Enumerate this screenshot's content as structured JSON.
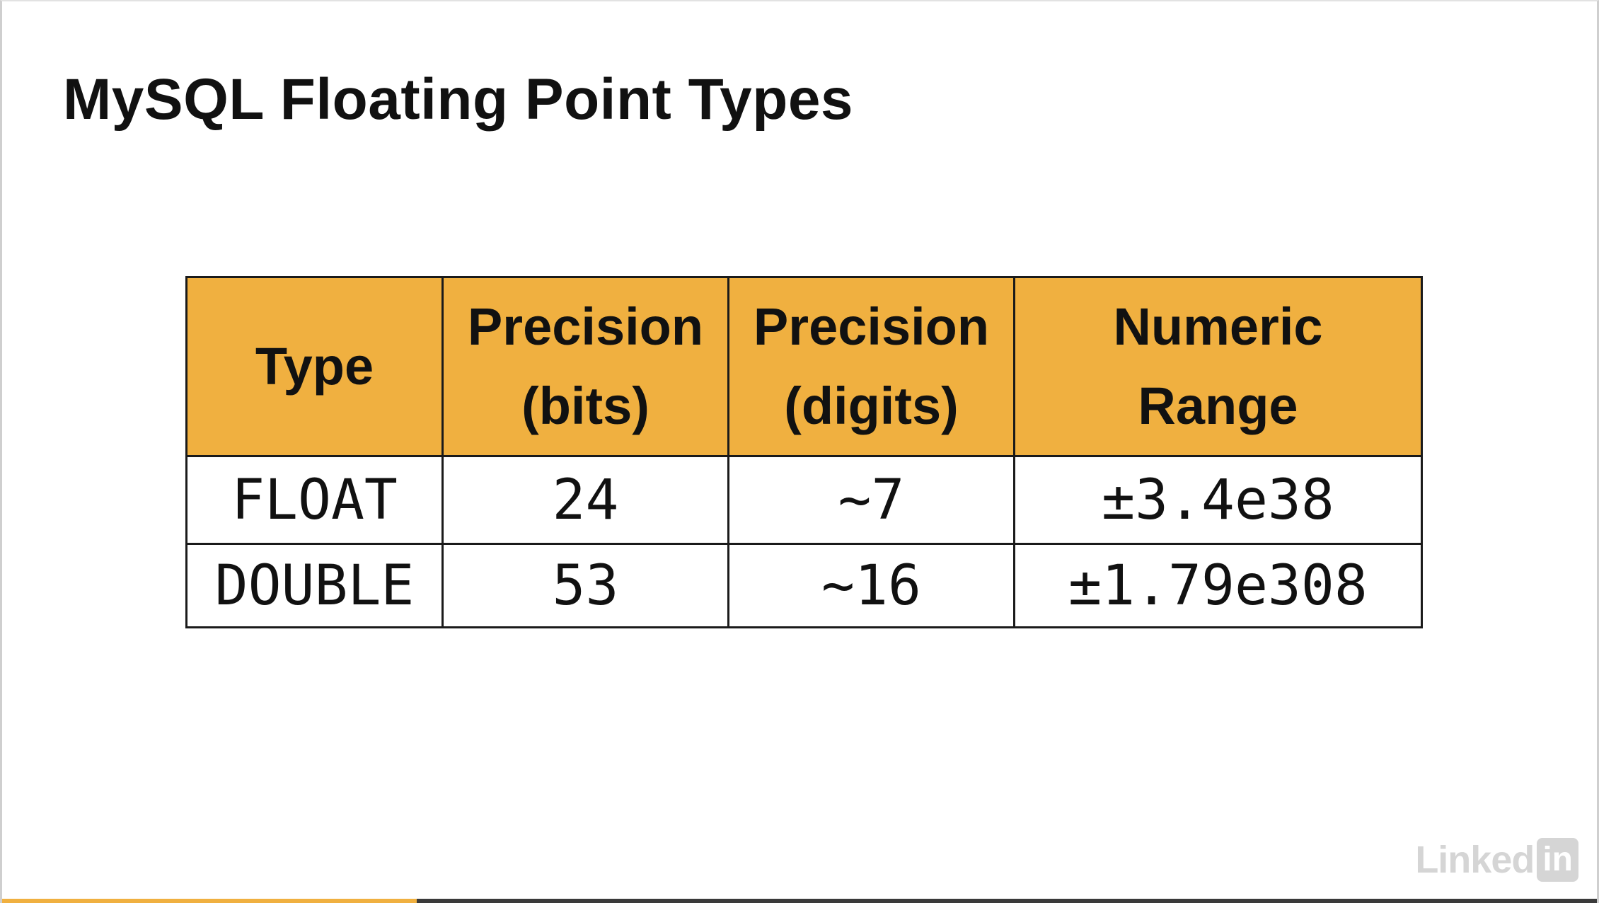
{
  "slide": {
    "title": "MySQL Floating Point Types"
  },
  "table": {
    "headers": [
      {
        "lines": [
          "Type"
        ]
      },
      {
        "lines": [
          "Precision",
          "(bits)"
        ]
      },
      {
        "lines": [
          "Precision",
          "(digits)"
        ]
      },
      {
        "lines": [
          "Numeric",
          "Range"
        ]
      }
    ],
    "rows": [
      [
        "FLOAT",
        "24",
        "~7",
        "±3.4e38"
      ],
      [
        "DOUBLE",
        "53",
        "~16",
        "±1.79e308"
      ]
    ]
  },
  "colors": {
    "header_fill": "#f0b040",
    "border": "#1a1a1a",
    "progress_fill": "#f0b040",
    "progress_track": "#3a3a3a"
  },
  "watermark": {
    "brand": "Linked",
    "badge": "in"
  },
  "video": {
    "progress_fraction": 0.26
  }
}
